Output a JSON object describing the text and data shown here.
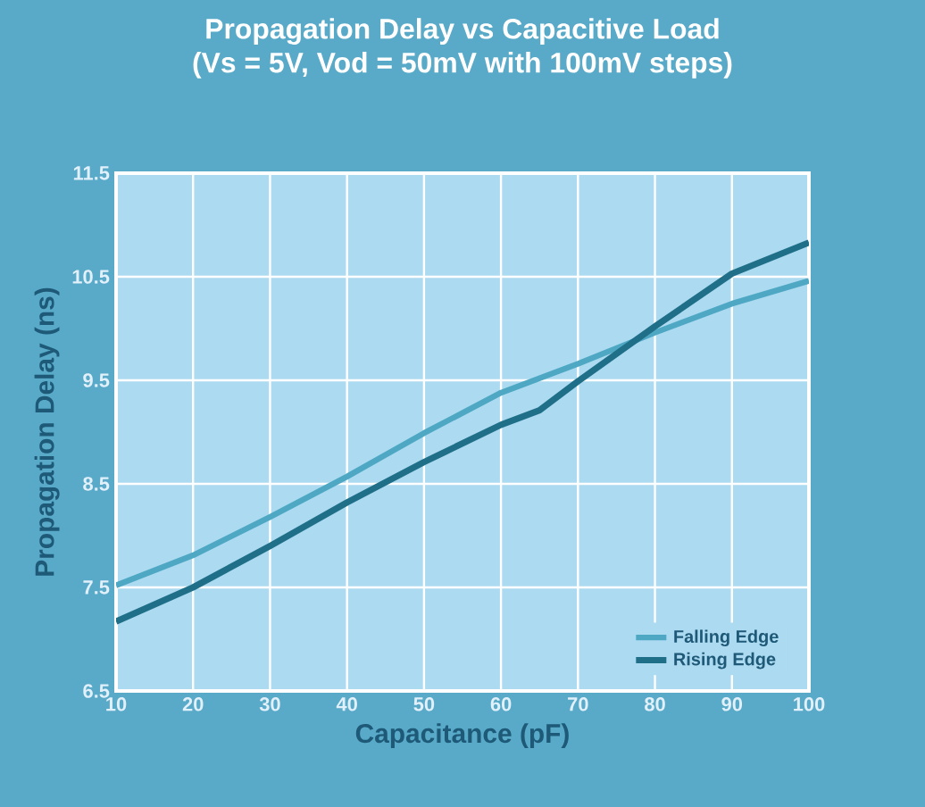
{
  "chart_data": {
    "type": "line",
    "title": "Propagation Delay vs Capacitive Load",
    "subtitle": "(Vs = 5V, Vod = 50mV with 100mV steps)",
    "xlabel": "Capacitance (pF)",
    "ylabel": "Propagation Delay (ns)",
    "series": [
      {
        "name": "Falling Edge",
        "color": "#4ea8c4",
        "x": [
          10,
          20,
          30,
          40,
          50,
          60,
          70,
          80,
          90,
          100
        ],
        "values": [
          7.52,
          7.81,
          8.18,
          8.57,
          8.99,
          9.38,
          9.66,
          9.96,
          10.24,
          10.46
        ]
      },
      {
        "name": "Rising Edge",
        "color": "#1f6f88",
        "x": [
          10,
          20,
          30,
          40,
          50,
          60,
          65,
          70,
          80,
          90,
          100
        ],
        "values": [
          7.17,
          7.5,
          7.9,
          8.32,
          8.71,
          9.07,
          9.21,
          9.49,
          10.02,
          10.53,
          10.83
        ]
      }
    ],
    "xlim": [
      10,
      100
    ],
    "xticks": [
      10,
      20,
      30,
      40,
      50,
      60,
      70,
      80,
      90,
      100
    ],
    "ylim": [
      6.5,
      11.5
    ],
    "yticks": [
      6.5,
      7.5,
      8.5,
      9.5,
      10.5,
      11.5
    ],
    "grid": true,
    "legend": "bottom right",
    "marker": "none",
    "line_style": "solid"
  }
}
